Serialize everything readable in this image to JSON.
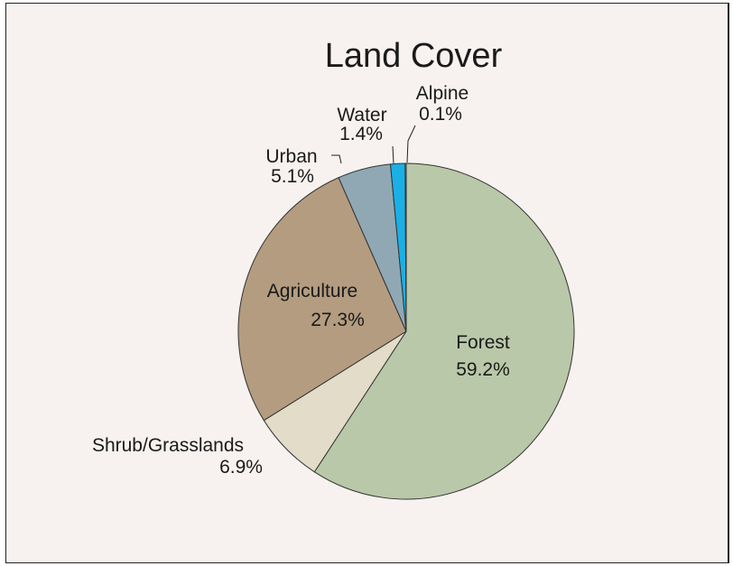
{
  "chart_data": {
    "type": "pie",
    "title": "Land Cover",
    "colors": {
      "background": "#f7f2ef",
      "outline": "#333333"
    },
    "slices": [
      {
        "label": "Forest",
        "value": 59.2,
        "value_label": "59.2%",
        "color": "#b9c8a8"
      },
      {
        "label": "Shrub/Grasslands",
        "value": 6.9,
        "value_label": "6.9%",
        "color": "#e2dcc8"
      },
      {
        "label": "Agriculture",
        "value": 27.3,
        "value_label": "27.3%",
        "color": "#b49c80"
      },
      {
        "label": "Urban",
        "value": 5.1,
        "value_label": "5.1%",
        "color": "#8fa8b4"
      },
      {
        "label": "Water",
        "value": 1.4,
        "value_label": "1.4%",
        "color": "#1ab0e6"
      },
      {
        "label": "Alpine",
        "value": 0.1,
        "value_label": "0.1%",
        "color": "#ffffff"
      }
    ]
  }
}
